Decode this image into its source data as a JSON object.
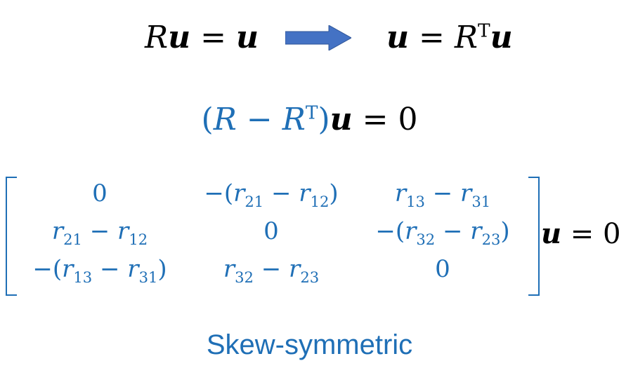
{
  "colors": {
    "accent": "#1f6fb6",
    "arrow_fill": "#4472c4",
    "text": "#000000"
  },
  "eq1_left": {
    "R": "R",
    "u": "u",
    "eq": " = ",
    "u2": "u"
  },
  "eq1_right": {
    "u": "u",
    "eq": " = ",
    "R": "R",
    "T": "T",
    "u2": "u"
  },
  "eq2": {
    "open": "(",
    "R": "R",
    "minus": " − ",
    "R2": "R",
    "T": "T",
    "close": ")",
    "u": "u",
    "eq": " = 0"
  },
  "matrix": {
    "rows": [
      [
        "0",
        "−(r21 − r12)",
        "r13 − r31"
      ],
      [
        "r21 − r12",
        "0",
        "−(r32 − r23)"
      ],
      [
        "−(r13 − r31)",
        "r32 − r23",
        "0"
      ]
    ]
  },
  "matrix_rhs": {
    "u": "u",
    "eq": " = 0"
  },
  "caption": "Skew-symmetric"
}
